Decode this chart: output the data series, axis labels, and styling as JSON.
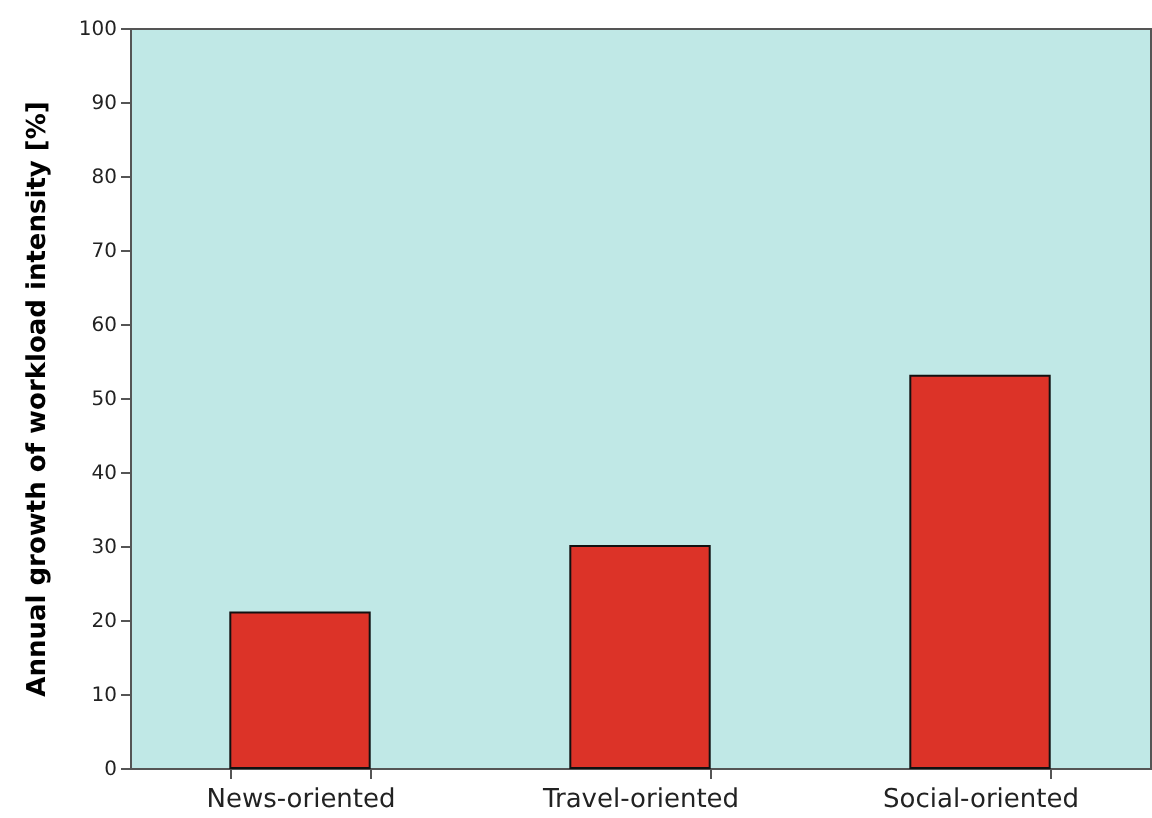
{
  "chart_data": {
    "type": "bar",
    "ylabel": "Annual growth of workload intensity [%]",
    "categories": [
      "News-oriented",
      "Travel-oriented",
      "Social-oriented"
    ],
    "values": [
      21,
      30,
      53
    ],
    "color": "#dc3328",
    "ylim": [
      0,
      100
    ],
    "yticks": [
      0,
      10,
      20,
      30,
      40,
      50,
      60,
      70,
      80,
      90,
      100
    ],
    "grid": false
  }
}
